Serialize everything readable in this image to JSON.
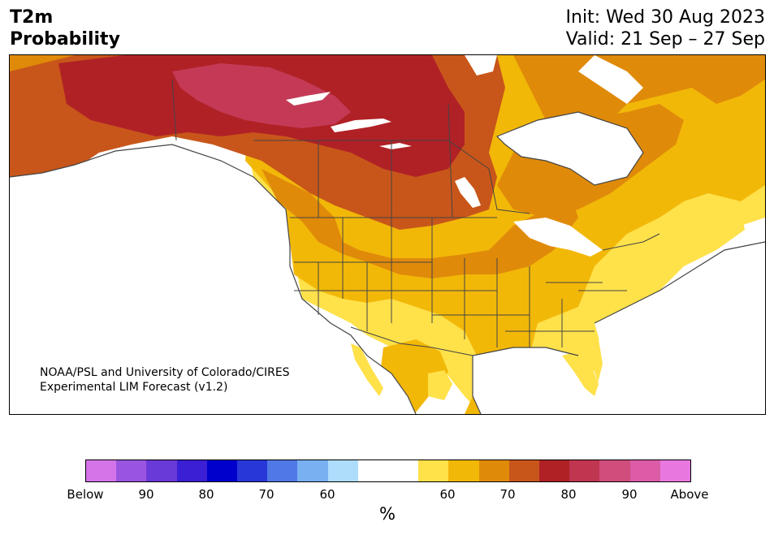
{
  "header": {
    "variable": "T2m",
    "kind": "Probability",
    "init": "Init: Wed 30 Aug 2023",
    "valid": "Valid: 21 Sep – 27 Sep"
  },
  "credit": {
    "line1": "NOAA/PSL and University of Colorado/CIRES",
    "line2": "Experimental LIM Forecast (v1.2)"
  },
  "colorbar": {
    "colors": [
      "#d474e8",
      "#9a55e0",
      "#6a3ad8",
      "#3a1fd4",
      "#0000cc",
      "#2838d8",
      "#5078e6",
      "#78b0f2",
      "#aeddfb",
      "#ffffff",
      "#ffffff",
      "#ffe14a",
      "#f2b808",
      "#e08a0a",
      "#c8561a",
      "#b02126",
      "#c03550",
      "#d04d7c",
      "#dc5ca8",
      "#e878e0"
    ],
    "labels": [
      "Below",
      "90",
      "80",
      "70",
      "60",
      "60",
      "70",
      "80",
      "90",
      "Above"
    ],
    "unit": "%"
  },
  "map": {
    "region": "North America",
    "colors": {
      "above_90": "#c43a56",
      "above_80": "#b02126",
      "above_70": "#c8561a",
      "above_65": "#e08a0a",
      "above_60": "#f2b808",
      "above_55": "#ffe14a",
      "neutral": "#ffffff",
      "borders": "#444444"
    }
  }
}
